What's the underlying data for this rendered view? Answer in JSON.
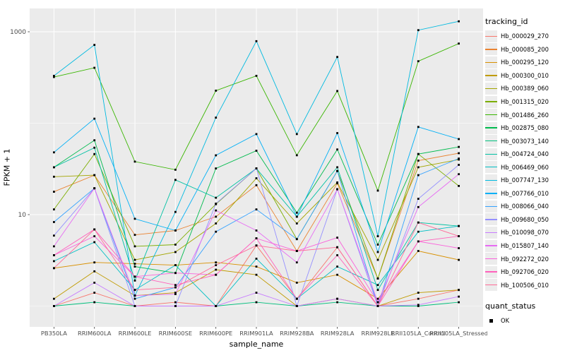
{
  "figure": {
    "panel_bg": "#EBEBEB",
    "grid_color": "#FFFFFF",
    "text_color": "#4D4D4D",
    "legend": {
      "tracking_title": "tracking_id",
      "quant_title": "quant_status",
      "quant_item_label": "OK",
      "key_bg": "#ECECEC",
      "quant_marker": "black-square"
    }
  },
  "chart_data": {
    "type": "line",
    "title": "",
    "xlabel": "sample_name",
    "ylabel": "FPKM + 1",
    "y_scale": "log10",
    "ylim": [
      1,
      1800
    ],
    "grid": true,
    "legend_position": "right",
    "point_marker": "black-square",
    "point_color": "#000000",
    "quant_status": "OK",
    "y_ticks": [
      {
        "label": "1000",
        "value": 1000
      },
      {
        "label": "10",
        "value": 10
      }
    ],
    "y_minor_grid_values": [
      1,
      100
    ],
    "categories": [
      "PB350LA",
      "RRIM600LA",
      "RRIM600LE",
      "RRIM600SE",
      "RRIM600PE",
      "RRIM901LA",
      "RRIM928BA",
      "RRIM928LA",
      "RRIM928LE",
      "RRII105LA_Control",
      "RRII105LA_Stressed"
    ],
    "series": [
      {
        "name": "Hb_000029_270",
        "color": "#F8766D",
        "values": [
          1.0,
          1.4,
          1.0,
          1.1,
          1.0,
          4.6,
          1.2,
          4.4,
          1.0,
          1.2,
          1.5
        ]
      },
      {
        "name": "Hb_000085_200",
        "color": "#EA8331",
        "values": [
          17.8,
          27,
          6.0,
          6.7,
          9.5,
          21,
          4.0,
          22,
          2.0,
          39,
          47
        ]
      },
      {
        "name": "Hb_000295_120",
        "color": "#D89000",
        "values": [
          2.6,
          3.0,
          2.9,
          2.8,
          3.0,
          2.7,
          1.8,
          2.2,
          1.2,
          4.0,
          3.2
        ]
      },
      {
        "name": "Hb_000300_010",
        "color": "#C09B00",
        "values": [
          1.2,
          2.4,
          1.3,
          1.4,
          2.5,
          2.2,
          1.0,
          1.2,
          1.0,
          1.4,
          1.5
        ]
      },
      {
        "name": "Hb_000389_060",
        "color": "#A3A500",
        "values": [
          26,
          27,
          3.2,
          3.9,
          8.0,
          25,
          8.0,
          22.5,
          3.2,
          33,
          40
        ]
      },
      {
        "name": "Hb_001315_020",
        "color": "#7CAE00",
        "values": [
          11.4,
          46,
          4.5,
          4.7,
          13,
          32,
          5.4,
          30,
          2.0,
          46,
          20.6
        ]
      },
      {
        "name": "Hb_001486_260",
        "color": "#39B600",
        "values": [
          320,
          404,
          38,
          31,
          227,
          330,
          44.6,
          225,
          18.3,
          476,
          743
        ]
      },
      {
        "name": "Hb_002875_080",
        "color": "#00BB4E",
        "values": [
          33,
          65,
          2.7,
          2.3,
          32,
          50,
          10.5,
          51.6,
          4.7,
          46,
          55
        ]
      },
      {
        "name": "Hb_003073_140",
        "color": "#00BF7D",
        "values": [
          1.0,
          1.1,
          1.0,
          1.0,
          1.0,
          1.1,
          1.0,
          1.1,
          1.0,
          1.0,
          1.1
        ]
      },
      {
        "name": "Hb_004724_040",
        "color": "#00C1A3",
        "values": [
          33,
          54,
          1.9,
          24,
          15.3,
          32,
          9.5,
          33,
          1.5,
          8.2,
          7.5
        ]
      },
      {
        "name": "Hb_006469_060",
        "color": "#00BFC4",
        "values": [
          3.1,
          5.0,
          1.5,
          2.8,
          1.0,
          3.3,
          1.2,
          2.7,
          1.7,
          6.5,
          7.5
        ]
      },
      {
        "name": "Hb_007747_130",
        "color": "#00BAE0",
        "values": [
          330,
          718,
          1.3,
          10.7,
          115,
          789,
          76,
          530,
          5.8,
          1042,
          1300
        ]
      },
      {
        "name": "Hb_007766_010",
        "color": "#00B0F6",
        "values": [
          48,
          112,
          9.0,
          6.7,
          44.5,
          76,
          9.5,
          78,
          3.9,
          91,
          67
        ]
      },
      {
        "name": "Hb_008066_040",
        "color": "#35A2FF",
        "values": [
          8.3,
          19.4,
          1.2,
          1.6,
          6.5,
          11.4,
          5.4,
          30,
          1.0,
          27,
          41
        ]
      },
      {
        "name": "Hb_009680_050",
        "color": "#9590FF",
        "values": [
          5.9,
          19.4,
          1.0,
          1.0,
          13.2,
          32,
          1.0,
          19,
          1.0,
          14.9,
          35
        ]
      },
      {
        "name": "Hb_010098_070",
        "color": "#C77CFF",
        "values": [
          1.0,
          1.8,
          1.0,
          1.0,
          1.0,
          1.4,
          1.0,
          1.2,
          1.0,
          1.03,
          1.27
        ]
      },
      {
        "name": "Hb_015807_140",
        "color": "#E76BF3",
        "values": [
          4.5,
          19.4,
          1.3,
          1.35,
          11.1,
          6.7,
          3.0,
          18.9,
          1.1,
          12.1,
          27.7
        ]
      },
      {
        "name": "Hb_092272_020",
        "color": "#FA62DB",
        "values": [
          3.6,
          5.8,
          2.1,
          2.3,
          2.2,
          5.5,
          4.0,
          5.6,
          1.1,
          5.1,
          4.3
        ]
      },
      {
        "name": "Hb_092706_020",
        "color": "#FF62BC",
        "values": [
          3.6,
          6.9,
          2.1,
          1.7,
          2.2,
          5.5,
          1.2,
          3.6,
          1.0,
          5.1,
          5.8
        ]
      },
      {
        "name": "Hb_100506_010",
        "color": "#FF6A98",
        "values": [
          2.6,
          6.9,
          1.5,
          1.6,
          2.8,
          4.6,
          4.0,
          4.4,
          1.0,
          8.2,
          5.8
        ]
      }
    ]
  }
}
